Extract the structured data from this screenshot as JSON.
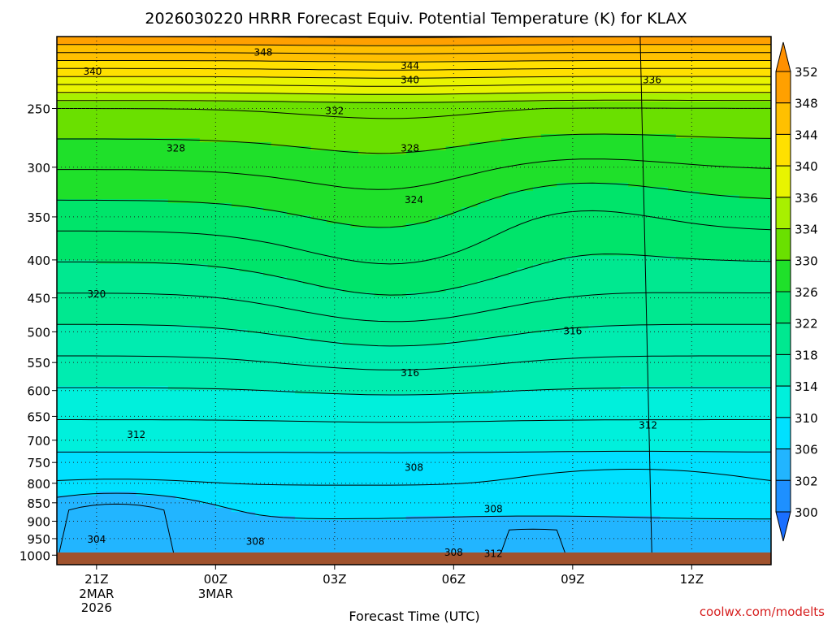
{
  "chart_data": {
    "type": "contour",
    "title": "2026030220 HRRR Forecast Equiv. Potential Temperature (K) for KLAX",
    "xlabel": "Forecast Time (UTC)",
    "ylabel": "",
    "x_ticks": [
      {
        "hour": 1,
        "label": "21Z",
        "sub": [
          "2MAR",
          "2026"
        ]
      },
      {
        "hour": 4,
        "label": "00Z",
        "sub": [
          "3MAR"
        ]
      },
      {
        "hour": 7,
        "label": "03Z",
        "sub": []
      },
      {
        "hour": 10,
        "label": "06Z",
        "sub": []
      },
      {
        "hour": 13,
        "label": "09Z",
        "sub": []
      },
      {
        "hour": 16,
        "label": "12Z",
        "sub": []
      }
    ],
    "x_range_hours": [
      0,
      18
    ],
    "y_axis": "pressure (hPa), log scale, inverted",
    "y_range": [
      1030,
      200
    ],
    "y_ticks": [
      250,
      300,
      350,
      400,
      450,
      500,
      550,
      600,
      650,
      700,
      750,
      800,
      850,
      900,
      950,
      1000
    ],
    "colorbar": {
      "levels": [
        300,
        302,
        306,
        310,
        314,
        318,
        322,
        326,
        330,
        334,
        336,
        340,
        344,
        348,
        352
      ],
      "colors": [
        "#1a6fff",
        "#1e90ff",
        "#22b5ff",
        "#00e0ff",
        "#00f0dc",
        "#00ecb0",
        "#00e890",
        "#00e46a",
        "#1fe02a",
        "#6ae000",
        "#a8f000",
        "#e8f400",
        "#ffe000",
        "#ffc000",
        "#ffa000",
        "#ff9000"
      ]
    },
    "contour_labels": [
      {
        "value": "348",
        "hour": 5.2,
        "p": 210
      },
      {
        "value": "344",
        "hour": 8.9,
        "p": 219
      },
      {
        "value": "340",
        "hour": 0.9,
        "p": 223
      },
      {
        "value": "340",
        "hour": 8.9,
        "p": 229
      },
      {
        "value": "336",
        "hour": 15.0,
        "p": 229
      },
      {
        "value": "332",
        "hour": 7.0,
        "p": 252
      },
      {
        "value": "328",
        "hour": 3.0,
        "p": 283
      },
      {
        "value": "328",
        "hour": 8.9,
        "p": 283
      },
      {
        "value": "324",
        "hour": 9.0,
        "p": 332
      },
      {
        "value": "320",
        "hour": 1.0,
        "p": 445
      },
      {
        "value": "316",
        "hour": 13.0,
        "p": 499
      },
      {
        "value": "316",
        "hour": 8.9,
        "p": 568
      },
      {
        "value": "312",
        "hour": 2.0,
        "p": 688
      },
      {
        "value": "312",
        "hour": 14.9,
        "p": 668
      },
      {
        "value": "308",
        "hour": 9.0,
        "p": 762
      },
      {
        "value": "308",
        "hour": 11.0,
        "p": 867
      },
      {
        "value": "308",
        "hour": 5.0,
        "p": 958
      },
      {
        "value": "308",
        "hour": 10.0,
        "p": 992
      },
      {
        "value": "312",
        "hour": 11.0,
        "p": 995
      },
      {
        "value": "304",
        "hour": 1.0,
        "p": 952
      }
    ],
    "surface_pressure_hpa": 1012,
    "grid": true
  },
  "credit": "coolwx.com/modelts"
}
